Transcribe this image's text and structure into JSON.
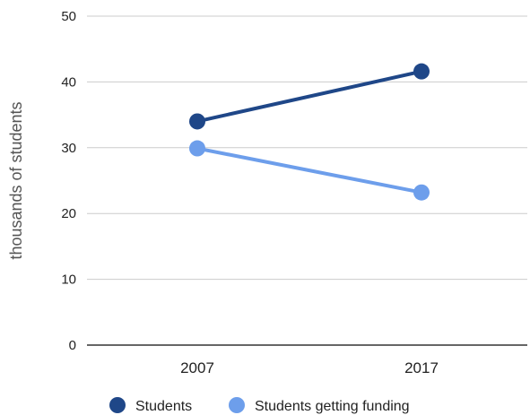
{
  "chart_data": {
    "type": "line",
    "categories": [
      "2007",
      "2017"
    ],
    "ylabel": "thousands of students",
    "ylim": [
      0,
      50
    ],
    "yticks": [
      0,
      10,
      20,
      30,
      40,
      50
    ],
    "grid": true,
    "legend": "bottom",
    "series": [
      {
        "name": "Students",
        "values": [
          34,
          41.6
        ],
        "color": "#1f4788"
      },
      {
        "name": "Students getting funding",
        "values": [
          29.9,
          23.2
        ],
        "color": "#6d9eeb"
      }
    ]
  }
}
